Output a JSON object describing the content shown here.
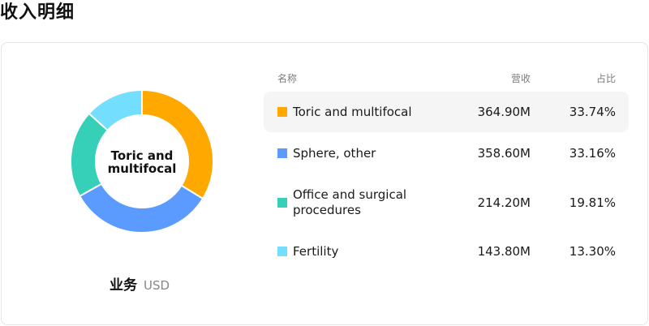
{
  "page": {
    "title": "收入明细"
  },
  "chart_data": {
    "type": "pie",
    "center_label_lines": [
      "Toric and",
      "multifocal"
    ],
    "footer": {
      "name": "业务",
      "unit": "USD"
    },
    "columns": {
      "name": "名称",
      "revenue": "营收",
      "share": "占比"
    },
    "slices": [
      {
        "label_lines": [
          "Toric and multifocal"
        ],
        "revenue": "364.90M",
        "value": 364.9,
        "share": "33.74%",
        "color": "#FFA800"
      },
      {
        "label_lines": [
          "Sphere, other"
        ],
        "revenue": "358.60M",
        "value": 358.6,
        "share": "33.16%",
        "color": "#5B9BFF"
      },
      {
        "label_lines": [
          "Office and surgical",
          "procedures"
        ],
        "revenue": "214.20M",
        "value": 214.2,
        "share": "19.81%",
        "color": "#36D0B9"
      },
      {
        "label_lines": [
          "Fertility"
        ],
        "revenue": "143.80M",
        "value": 143.8,
        "share": "13.30%",
        "color": "#74DEFF"
      }
    ],
    "highlighted_index": 0
  }
}
